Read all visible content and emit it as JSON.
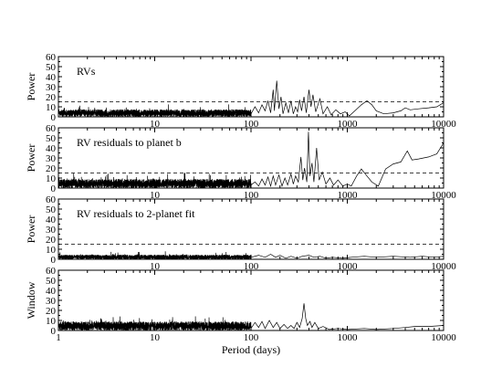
{
  "chart_data": {
    "type": "line",
    "xlabel": "Period (days)",
    "xscale": "log",
    "xlim": [
      1,
      10000
    ],
    "x_ticks": [
      "1",
      "10",
      "100",
      "1000",
      "10000"
    ],
    "threshold": 15,
    "panels": [
      {
        "label": "RVs",
        "ylabel": "Power",
        "ylim": [
          0,
          60
        ],
        "y_ticks": [
          "0",
          "10",
          "20",
          "30",
          "40",
          "50",
          "60"
        ],
        "show_threshold": true,
        "noise": {
          "base": 2.5,
          "amp": 5,
          "short_end": 100
        },
        "series": [
          [
            100,
            3
          ],
          [
            110,
            10
          ],
          [
            120,
            4
          ],
          [
            130,
            12
          ],
          [
            140,
            6
          ],
          [
            150,
            16
          ],
          [
            160,
            4
          ],
          [
            170,
            27
          ],
          [
            175,
            6
          ],
          [
            185,
            36
          ],
          [
            195,
            8
          ],
          [
            205,
            20
          ],
          [
            215,
            3
          ],
          [
            230,
            14
          ],
          [
            245,
            4
          ],
          [
            260,
            16
          ],
          [
            275,
            3
          ],
          [
            290,
            10
          ],
          [
            305,
            5
          ],
          [
            320,
            17
          ],
          [
            335,
            6
          ],
          [
            355,
            20
          ],
          [
            375,
            4
          ],
          [
            400,
            27
          ],
          [
            420,
            10
          ],
          [
            440,
            22
          ],
          [
            470,
            5
          ],
          [
            520,
            18
          ],
          [
            560,
            3
          ],
          [
            620,
            10
          ],
          [
            680,
            2
          ],
          [
            760,
            7
          ],
          [
            850,
            3
          ],
          [
            950,
            5
          ],
          [
            1050,
            1
          ],
          [
            1200,
            6
          ],
          [
            1400,
            12
          ],
          [
            1600,
            16
          ],
          [
            1800,
            12
          ],
          [
            2000,
            6
          ],
          [
            2400,
            3
          ],
          [
            3000,
            4
          ],
          [
            3600,
            6
          ],
          [
            4000,
            9
          ],
          [
            4500,
            7
          ],
          [
            5500,
            8
          ],
          [
            7000,
            9
          ],
          [
            8500,
            10
          ],
          [
            10000,
            14
          ]
        ]
      },
      {
        "label": "RV residuals to planet b",
        "ylabel": "Power",
        "ylim": [
          0,
          60
        ],
        "y_ticks": [
          "0",
          "10",
          "20",
          "30",
          "40",
          "50",
          "60"
        ],
        "show_threshold": true,
        "noise": {
          "base": 3,
          "amp": 6,
          "short_end": 100
        },
        "series": [
          [
            100,
            3
          ],
          [
            110,
            6
          ],
          [
            120,
            2
          ],
          [
            130,
            9
          ],
          [
            140,
            3
          ],
          [
            150,
            11
          ],
          [
            160,
            2
          ],
          [
            170,
            12
          ],
          [
            180,
            3
          ],
          [
            195,
            13
          ],
          [
            210,
            2
          ],
          [
            225,
            10
          ],
          [
            240,
            3
          ],
          [
            260,
            14
          ],
          [
            275,
            4
          ],
          [
            290,
            12
          ],
          [
            310,
            6
          ],
          [
            330,
            31
          ],
          [
            345,
            8
          ],
          [
            360,
            20
          ],
          [
            380,
            6
          ],
          [
            395,
            56
          ],
          [
            410,
            12
          ],
          [
            430,
            25
          ],
          [
            450,
            6
          ],
          [
            480,
            40
          ],
          [
            510,
            8
          ],
          [
            550,
            16
          ],
          [
            600,
            4
          ],
          [
            660,
            10
          ],
          [
            720,
            3
          ],
          [
            800,
            8
          ],
          [
            900,
            2
          ],
          [
            1000,
            4
          ],
          [
            1100,
            2
          ],
          [
            1250,
            12
          ],
          [
            1400,
            19
          ],
          [
            1600,
            12
          ],
          [
            1800,
            6
          ],
          [
            2100,
            2
          ],
          [
            2500,
            19
          ],
          [
            3000,
            24
          ],
          [
            3600,
            26
          ],
          [
            4200,
            37
          ],
          [
            4700,
            28
          ],
          [
            5500,
            29
          ],
          [
            7000,
            31
          ],
          [
            8500,
            34
          ],
          [
            10000,
            45
          ]
        ]
      },
      {
        "label": "RV residuals to 2-planet fit",
        "ylabel": "Power",
        "ylim": [
          0,
          60
        ],
        "y_ticks": [
          "0",
          "10",
          "20",
          "30",
          "40",
          "50",
          "60"
        ],
        "show_threshold": true,
        "noise": {
          "base": 1.5,
          "amp": 3,
          "short_end": 100
        },
        "series": [
          [
            100,
            2
          ],
          [
            120,
            4
          ],
          [
            140,
            2
          ],
          [
            160,
            5
          ],
          [
            180,
            2
          ],
          [
            200,
            4
          ],
          [
            230,
            1
          ],
          [
            260,
            3
          ],
          [
            300,
            1
          ],
          [
            340,
            3
          ],
          [
            400,
            4
          ],
          [
            450,
            2
          ],
          [
            520,
            3
          ],
          [
            600,
            1
          ],
          [
            700,
            2
          ],
          [
            900,
            1
          ],
          [
            1100,
            2
          ],
          [
            1500,
            3
          ],
          [
            2000,
            2
          ],
          [
            3000,
            3
          ],
          [
            4500,
            2
          ],
          [
            6000,
            3
          ],
          [
            8000,
            2
          ],
          [
            10000,
            3
          ]
        ]
      },
      {
        "label": "",
        "ylabel": "Window",
        "ylim": [
          0,
          60
        ],
        "y_ticks": [
          "0",
          "10",
          "20",
          "30",
          "40",
          "50",
          "60"
        ],
        "show_threshold": false,
        "noise": {
          "base": 3,
          "amp": 6,
          "short_end": 100
        },
        "series": [
          [
            100,
            2
          ],
          [
            110,
            8
          ],
          [
            120,
            3
          ],
          [
            130,
            9
          ],
          [
            140,
            2
          ],
          [
            155,
            10
          ],
          [
            170,
            3
          ],
          [
            185,
            8
          ],
          [
            200,
            2
          ],
          [
            220,
            6
          ],
          [
            240,
            2
          ],
          [
            260,
            5
          ],
          [
            280,
            2
          ],
          [
            300,
            8
          ],
          [
            320,
            3
          ],
          [
            340,
            12
          ],
          [
            355,
            27
          ],
          [
            370,
            12
          ],
          [
            385,
            5
          ],
          [
            410,
            9
          ],
          [
            430,
            3
          ],
          [
            460,
            8
          ],
          [
            500,
            2
          ],
          [
            560,
            4
          ],
          [
            650,
            1
          ],
          [
            800,
            2
          ],
          [
            1000,
            1
          ],
          [
            1500,
            2
          ],
          [
            2000,
            1
          ],
          [
            3000,
            2
          ],
          [
            4000,
            3
          ],
          [
            5000,
            4
          ],
          [
            7000,
            4
          ],
          [
            10000,
            5
          ]
        ]
      }
    ]
  }
}
